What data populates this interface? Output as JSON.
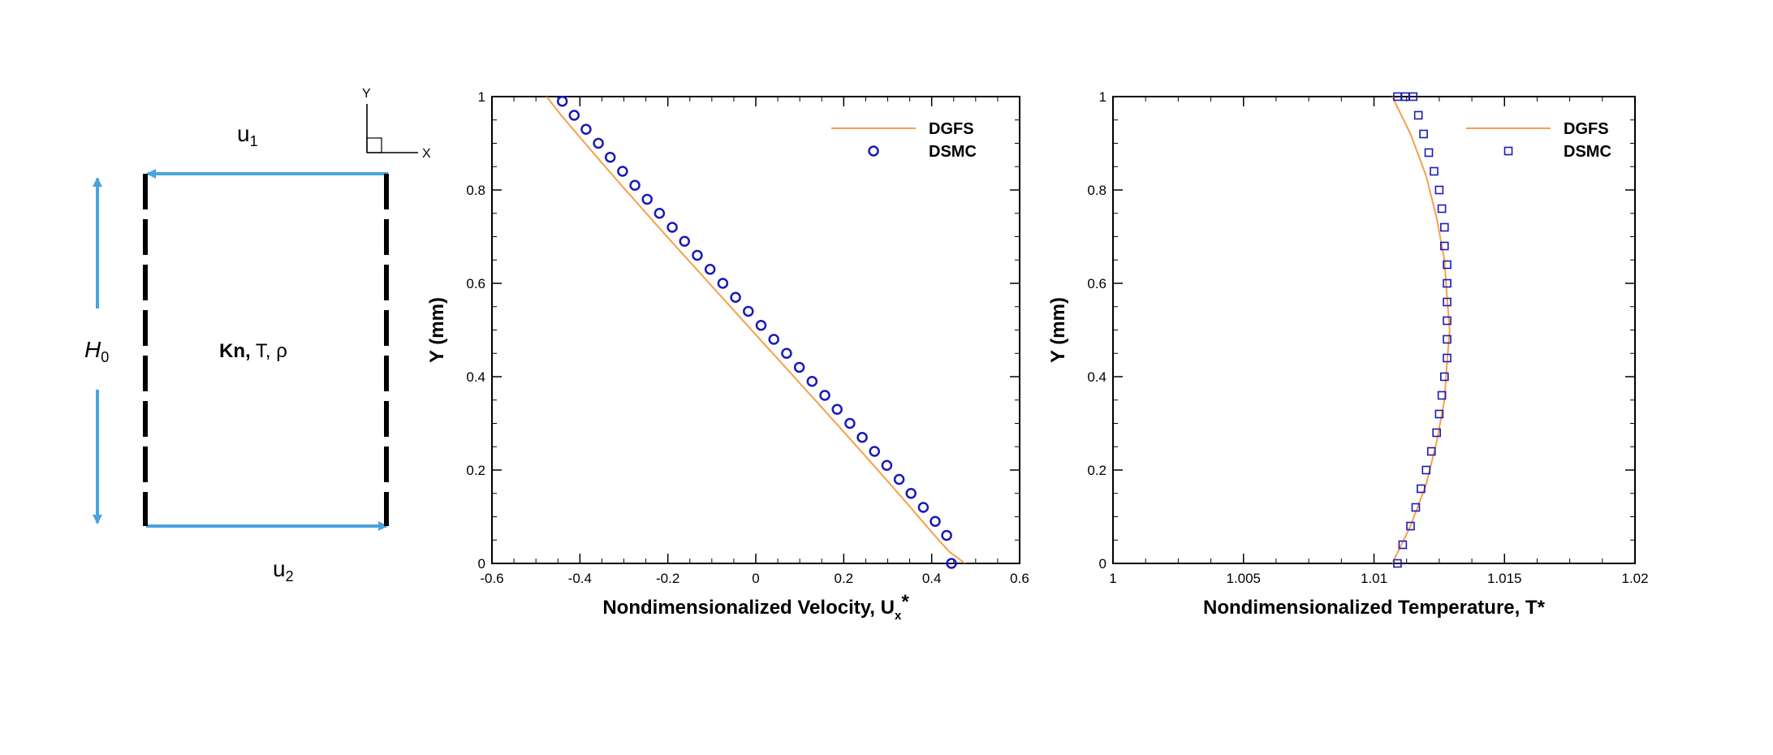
{
  "diagram": {
    "top_wall_label": "u",
    "top_wall_sub": "1",
    "bottom_wall_label": "u",
    "bottom_wall_sub": "2",
    "height_label": "H",
    "height_sub": "0",
    "center_bold": "Kn,",
    "center_rest": " T, ρ",
    "axis_y": "Y",
    "axis_x": "X",
    "arrow_color": "#4aa3df"
  },
  "chart_data": [
    {
      "type": "scatter",
      "xlabel": "Nondimensionalized Velocity, U",
      "xlabel_sub": "x",
      "xlabel_sup": "*",
      "ylabel": "Y (mm)",
      "xlim": [
        -0.6,
        0.6
      ],
      "ylim": [
        0,
        1
      ],
      "xticks": [
        -0.6,
        -0.4,
        -0.2,
        0,
        0.2,
        0.4,
        0.6
      ],
      "xtick_labels": [
        "-0.6",
        "-0.4",
        "-0.2",
        "0",
        "0.2",
        "0.4",
        "0.6"
      ],
      "yticks": [
        0,
        0.2,
        0.4,
        0.6,
        0.8,
        1
      ],
      "ytick_labels": [
        "0",
        "0.2",
        "0.4",
        "0.6",
        "0.8",
        "1"
      ],
      "legend_position": "top-right",
      "series": [
        {
          "name": "DGFS",
          "style": "line",
          "color": "#f5a04a",
          "x": [
            -0.476,
            -0.44,
            -0.4,
            -0.35,
            -0.3,
            -0.25,
            -0.2,
            -0.15,
            -0.1,
            -0.05,
            0.0,
            0.05,
            0.1,
            0.15,
            0.2,
            0.25,
            0.3,
            0.35,
            0.4,
            0.44,
            0.476
          ],
          "y": [
            1.0,
            0.957,
            0.913,
            0.858,
            0.804,
            0.751,
            0.698,
            0.646,
            0.594,
            0.542,
            0.49,
            0.438,
            0.386,
            0.334,
            0.282,
            0.229,
            0.176,
            0.122,
            0.067,
            0.025,
            0.0
          ]
        },
        {
          "name": "DSMC",
          "style": "circle",
          "color": "#1a1ab8",
          "x": [
            -0.44,
            -0.413,
            -0.386,
            -0.358,
            -0.331,
            -0.303,
            -0.275,
            -0.247,
            -0.219,
            -0.19,
            -0.162,
            -0.133,
            -0.104,
            -0.075,
            -0.046,
            -0.017,
            0.012,
            0.041,
            0.07,
            0.099,
            0.128,
            0.157,
            0.185,
            0.214,
            0.242,
            0.27,
            0.298,
            0.326,
            0.353,
            0.381,
            0.408,
            0.434,
            0.445
          ],
          "y": [
            0.99,
            0.96,
            0.93,
            0.9,
            0.87,
            0.84,
            0.81,
            0.78,
            0.75,
            0.72,
            0.69,
            0.66,
            0.63,
            0.6,
            0.57,
            0.54,
            0.51,
            0.48,
            0.45,
            0.42,
            0.39,
            0.36,
            0.33,
            0.3,
            0.27,
            0.24,
            0.21,
            0.18,
            0.15,
            0.12,
            0.09,
            0.06,
            0.0
          ]
        }
      ]
    },
    {
      "type": "scatter",
      "xlabel": "Nondimensionalized Temperature, T*",
      "ylabel": "Y (mm)",
      "xlim": [
        1.0,
        1.02
      ],
      "ylim": [
        0,
        1
      ],
      "xticks": [
        1.0,
        1.005,
        1.01,
        1.015,
        1.02
      ],
      "xtick_labels": [
        "1",
        "1.005",
        "1.01",
        "1.015",
        "1.02"
      ],
      "yticks": [
        0,
        0.2,
        0.4,
        0.6,
        0.8,
        1
      ],
      "ytick_labels": [
        "0",
        "0.2",
        "0.4",
        "0.6",
        "0.8",
        "1"
      ],
      "legend_position": "top-right",
      "series": [
        {
          "name": "DGFS",
          "style": "line",
          "color": "#f5a04a",
          "x": [
            1.0107,
            1.0114,
            1.012,
            1.0124,
            1.0127,
            1.0128,
            1.0129,
            1.0128,
            1.0127,
            1.0124,
            1.012,
            1.0114,
            1.0107
          ],
          "y": [
            0.0,
            0.08,
            0.17,
            0.26,
            0.35,
            0.43,
            0.5,
            0.57,
            0.65,
            0.74,
            0.83,
            0.92,
            1.0
          ]
        },
        {
          "name": "DSMC",
          "style": "square",
          "color": "#1a1ab8",
          "x": [
            1.0109,
            1.0111,
            1.0114,
            1.0116,
            1.0118,
            1.012,
            1.0122,
            1.0124,
            1.0125,
            1.0126,
            1.0127,
            1.0128,
            1.0128,
            1.0128,
            1.0128,
            1.0128,
            1.0128,
            1.0127,
            1.0127,
            1.0126,
            1.0125,
            1.0123,
            1.0121,
            1.0119,
            1.0117,
            1.0115,
            1.0112,
            1.0109
          ],
          "y": [
            0.0,
            0.04,
            0.08,
            0.12,
            0.16,
            0.2,
            0.24,
            0.28,
            0.32,
            0.36,
            0.4,
            0.44,
            0.48,
            0.52,
            0.56,
            0.6,
            0.64,
            0.68,
            0.72,
            0.76,
            0.8,
            0.84,
            0.88,
            0.92,
            0.96,
            1.0,
            1.0,
            1.0
          ]
        }
      ]
    }
  ]
}
